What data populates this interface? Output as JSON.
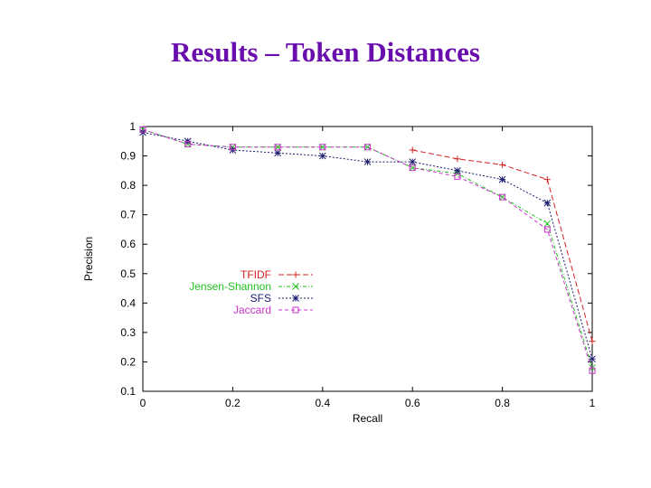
{
  "slide": {
    "title": "Results – Token Distances"
  },
  "chart_data": {
    "type": "line",
    "xlabel": "Recall",
    "ylabel": "Precision",
    "xlim": [
      0,
      1
    ],
    "ylim": [
      0.1,
      1
    ],
    "x_ticks": [
      "0",
      "0.2",
      "0.4",
      "0.6",
      "0.8",
      "1"
    ],
    "y_ticks": [
      "0.1",
      "0.2",
      "0.3",
      "0.4",
      "0.5",
      "0.6",
      "0.7",
      "0.8",
      "0.9",
      "1"
    ],
    "grid": false,
    "legend_position": "center-left",
    "series": [
      {
        "name": "TFIDF",
        "color": "#d62020",
        "marker": "plus",
        "points": [
          [
            0.6,
            0.92
          ],
          [
            0.7,
            0.89
          ],
          [
            0.8,
            0.87
          ],
          [
            0.9,
            0.82
          ],
          [
            1.0,
            0.27
          ]
        ]
      },
      {
        "name": "Jensen-Shannon",
        "color": "#22c022",
        "marker": "x",
        "points": [
          [
            0.0,
            0.99
          ],
          [
            0.1,
            0.94
          ],
          [
            0.2,
            0.93
          ],
          [
            0.3,
            0.93
          ],
          [
            0.4,
            0.93
          ],
          [
            0.5,
            0.93
          ],
          [
            0.6,
            0.86
          ],
          [
            0.7,
            0.84
          ],
          [
            0.8,
            0.76
          ],
          [
            0.9,
            0.67
          ],
          [
            1.0,
            0.18
          ]
        ]
      },
      {
        "name": "SFS",
        "color": "#1a1a70",
        "marker": "star",
        "points": [
          [
            0.0,
            0.98
          ],
          [
            0.1,
            0.95
          ],
          [
            0.2,
            0.92
          ],
          [
            0.3,
            0.91
          ],
          [
            0.4,
            0.9
          ],
          [
            0.5,
            0.88
          ],
          [
            0.6,
            0.88
          ],
          [
            0.7,
            0.85
          ],
          [
            0.8,
            0.82
          ],
          [
            0.9,
            0.74
          ],
          [
            1.0,
            0.21
          ]
        ]
      },
      {
        "name": "Jaccard",
        "color": "#cc33cc",
        "marker": "square",
        "points": [
          [
            0.0,
            0.99
          ],
          [
            0.1,
            0.94
          ],
          [
            0.2,
            0.93
          ],
          [
            0.3,
            0.93
          ],
          [
            0.4,
            0.93
          ],
          [
            0.5,
            0.93
          ],
          [
            0.6,
            0.86
          ],
          [
            0.7,
            0.83
          ],
          [
            0.8,
            0.76
          ],
          [
            0.9,
            0.65
          ],
          [
            1.0,
            0.17
          ]
        ]
      }
    ]
  }
}
